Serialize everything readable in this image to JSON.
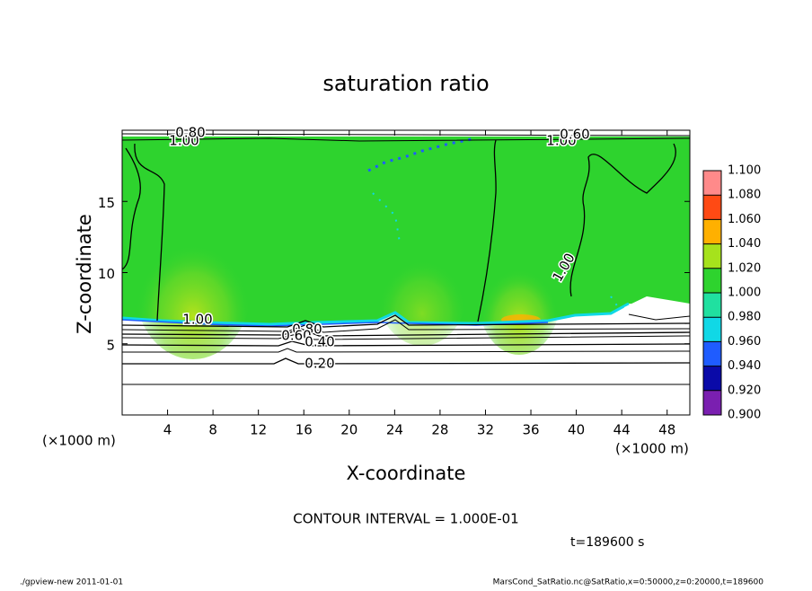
{
  "chart_data": {
    "type": "contour",
    "title": "saturation ratio",
    "xlabel": "X-coordinate",
    "ylabel": "Z-coordinate",
    "x_unit": "(×1000 m)",
    "y_unit": "(×1000 m)",
    "xlim": [
      0,
      50
    ],
    "ylim": [
      0,
      20
    ],
    "xticks": [
      4,
      8,
      12,
      16,
      20,
      24,
      28,
      32,
      36,
      40,
      44,
      48
    ],
    "yticks": [
      5,
      10,
      15
    ],
    "colorbar": {
      "levels": [
        {
          "value": 0.9,
          "label": "0.900"
        },
        {
          "value": 0.92,
          "label": "0.920"
        },
        {
          "value": 0.94,
          "label": "0.940"
        },
        {
          "value": 0.96,
          "label": "0.960"
        },
        {
          "value": 0.98,
          "label": "0.980"
        },
        {
          "value": 1.0,
          "label": "1.000"
        },
        {
          "value": 1.02,
          "label": "1.020"
        },
        {
          "value": 1.04,
          "label": "1.040"
        },
        {
          "value": 1.06,
          "label": "1.060"
        },
        {
          "value": 1.08,
          "label": "1.080"
        },
        {
          "value": 1.1,
          "label": "1.100"
        }
      ],
      "colors": [
        "#7a1fb0",
        "#0a0aa8",
        "#1f5cff",
        "#10d8e6",
        "#20e0a0",
        "#2ed32e",
        "#a6e21c",
        "#ffb000",
        "#ff4a14",
        "#ff8a8a"
      ]
    },
    "contours": [
      {
        "value": 0.2,
        "label": "0.20"
      },
      {
        "value": 0.4,
        "label": "0.40"
      },
      {
        "value": 0.6,
        "label": "0.60"
      },
      {
        "value": 0.8,
        "label": "0.80"
      },
      {
        "value": 1.0,
        "label": "1.00"
      }
    ],
    "contour_interval": "CONTOUR INTERVAL = 1.000E-01",
    "time": "t=189600 s",
    "footer_left": "./gpview-new  2011-01-01",
    "footer_right": "MarsCond_SatRatio.nc@SatRatio,x=0:50000,z=0:20000,t=189600"
  }
}
